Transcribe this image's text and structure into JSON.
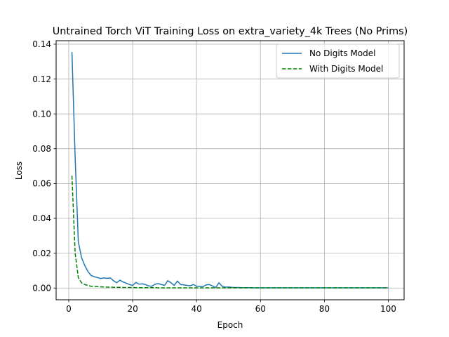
{
  "chart_data": {
    "type": "line",
    "title": "Untrained Torch ViT Training Loss on extra_variety_4k Trees (No Prims)",
    "xlabel": "Epoch",
    "ylabel": "Loss",
    "xlim": [
      -3.95,
      104.95
    ],
    "ylim": [
      -0.00676,
      0.142
    ],
    "xticks": [
      0,
      20,
      40,
      60,
      80,
      100
    ],
    "yticks": [
      0.0,
      0.02,
      0.04,
      0.06,
      0.08,
      0.1,
      0.12,
      0.14
    ],
    "xtick_labels": [
      "0",
      "20",
      "40",
      "60",
      "80",
      "100"
    ],
    "ytick_labels": [
      "0.00",
      "0.02",
      "0.04",
      "0.06",
      "0.08",
      "0.10",
      "0.12",
      "0.14"
    ],
    "grid": true,
    "legend_position": "top-right",
    "x": [
      1,
      2,
      3,
      4,
      5,
      6,
      7,
      8,
      9,
      10,
      11,
      12,
      13,
      14,
      15,
      16,
      17,
      18,
      19,
      20,
      21,
      22,
      23,
      24,
      25,
      26,
      27,
      28,
      29,
      30,
      31,
      32,
      33,
      34,
      35,
      36,
      37,
      38,
      39,
      40,
      41,
      42,
      43,
      44,
      45,
      46,
      47,
      48,
      49,
      50,
      51,
      52,
      53,
      54,
      55,
      56,
      57,
      58,
      59,
      60,
      61,
      62,
      63,
      64,
      65,
      66,
      67,
      68,
      69,
      70,
      71,
      72,
      73,
      74,
      75,
      76,
      77,
      78,
      79,
      80,
      81,
      82,
      83,
      84,
      85,
      86,
      87,
      88,
      89,
      90,
      91,
      92,
      93,
      94,
      95,
      96,
      97,
      98,
      99,
      100
    ],
    "series": [
      {
        "name": "No Digits Model",
        "color": "#1f77b4",
        "style": "solid",
        "values": [
          0.1355,
          0.075,
          0.0265,
          0.0175,
          0.013,
          0.0095,
          0.0072,
          0.0065,
          0.006,
          0.0055,
          0.0058,
          0.0056,
          0.0058,
          0.0042,
          0.003,
          0.0045,
          0.0035,
          0.0028,
          0.002,
          0.0015,
          0.0032,
          0.0022,
          0.0024,
          0.002,
          0.0012,
          0.001,
          0.0022,
          0.0025,
          0.002,
          0.0015,
          0.0042,
          0.003,
          0.0015,
          0.004,
          0.002,
          0.0018,
          0.0015,
          0.0013,
          0.002,
          0.001,
          0.001,
          0.0008,
          0.0018,
          0.002,
          0.0012,
          0.0003,
          0.003,
          0.001,
          0.0005,
          0.0006,
          0.0004,
          0.0003,
          0.0003,
          0.0002,
          0.0002,
          0.0002,
          0.0002,
          0.0001,
          0.0001,
          0.0001,
          0.0001,
          0.0001,
          0.0001,
          0.0001,
          0.0001,
          0.0001,
          0.0001,
          0.0001,
          0.0001,
          0.0001,
          0.0001,
          0.0001,
          0.0001,
          0.0001,
          0.0001,
          0.0001,
          0.0001,
          0.0001,
          0.0001,
          0.0001,
          0.0001,
          0.0001,
          0.0001,
          0.0001,
          0.0001,
          0.0001,
          0.0001,
          0.0001,
          0.0001,
          0.0001,
          0.0001,
          0.0001,
          0.0001,
          0.0001,
          0.0001,
          0.0001,
          0.0001,
          0.0001,
          0.0001,
          0.0001
        ]
      },
      {
        "name": "With Digits Model",
        "color": "#008000",
        "style": "dashed",
        "values": [
          0.0645,
          0.02,
          0.006,
          0.003,
          0.002,
          0.0015,
          0.001,
          0.0009,
          0.0008,
          0.0007,
          0.0006,
          0.0005,
          0.0005,
          0.0004,
          0.0004,
          0.0004,
          0.0003,
          0.0003,
          0.0003,
          0.0003,
          0.0002,
          0.0002,
          0.0002,
          0.0002,
          0.0002,
          0.0002,
          0.0002,
          0.0001,
          0.0001,
          0.0001,
          0.0001,
          0.0001,
          0.0001,
          0.0001,
          0.0001,
          0.0001,
          0.0001,
          0.0001,
          0.0001,
          0.0001,
          0.0001,
          0.0001,
          0.0001,
          0.0001,
          0.0001,
          0.0001,
          0.0001,
          0.0001,
          0.0001,
          0.0001,
          0.0001,
          0.0001,
          0.0001,
          0.0001,
          0.0001,
          0.0001,
          0.0001,
          0.0001,
          0.0001,
          0.0001,
          0.0001,
          0.0001,
          0.0001,
          0.0001,
          0.0001,
          0.0001,
          0.0001,
          0.0001,
          0.0001,
          0.0001,
          0.0001,
          0.0001,
          0.0001,
          0.0001,
          0.0001,
          0.0001,
          0.0001,
          0.0001,
          0.0001,
          0.0001,
          0.0001,
          0.0001,
          0.0001,
          0.0001,
          0.0001,
          0.0001,
          0.0001,
          0.0001,
          0.0001,
          0.0001,
          0.0001,
          0.0001,
          0.0001,
          0.0001,
          0.0001,
          0.0001,
          0.0001,
          0.0001,
          0.0001,
          0.0001
        ]
      }
    ]
  }
}
